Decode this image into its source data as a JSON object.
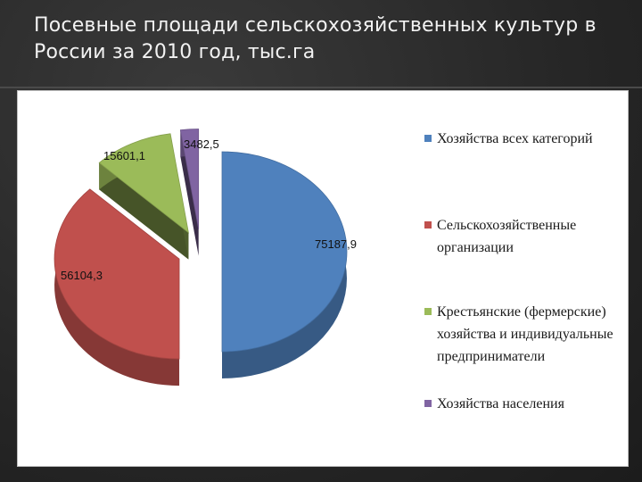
{
  "slide": {
    "title_line1": "Посевные площади сельскохозяйственных культур в",
    "title_line2": "России за 2010 год, тыс.га"
  },
  "chart_data": {
    "type": "pie",
    "title": "",
    "style": "3d-exploded",
    "legend_position": "right",
    "slices": [
      {
        "label": "Хозяйства всех категорий",
        "value": 75187.9,
        "value_text": "75187,9",
        "color": "#4f81bd"
      },
      {
        "label": "Сельскохозяйственные организации",
        "value": 56104.3,
        "value_text": "56104,3",
        "color": "#c0504d"
      },
      {
        "label": "Крестьянские (фермерские) хозяйства и индивидуальные предприниматели",
        "value": 15601.1,
        "value_text": "15601,1",
        "color": "#9bbb59"
      },
      {
        "label": "Хозяйства населения",
        "value": 3482.5,
        "value_text": "3482,5",
        "color": "#8064a2"
      }
    ]
  },
  "legend": {
    "items": [
      {
        "lines": [
          "Хозяйства всех категорий"
        ],
        "color": "#4f81bd"
      },
      {
        "lines": [
          "Сельскохозяйственные",
          "организации"
        ],
        "color": "#c0504d"
      },
      {
        "lines": [
          "Крестьянские (фермерские)",
          "хозяйства и индивидуальные",
          "предприниматели"
        ],
        "color": "#9bbb59"
      },
      {
        "lines": [
          "Хозяйства населения"
        ],
        "color": "#8064a2"
      }
    ]
  }
}
